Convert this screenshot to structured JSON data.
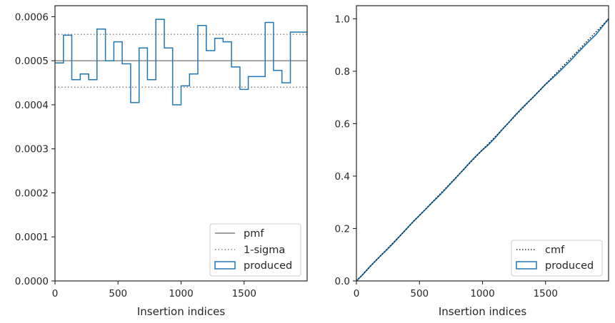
{
  "chart_data": [
    {
      "type": "histogram-step",
      "xlabel": "Insertion indices",
      "ylabel": "",
      "xlim": [
        0,
        2000
      ],
      "ylim": [
        0,
        0.000625
      ],
      "xticks": [
        0,
        500,
        1000,
        1500
      ],
      "xtick_labels": [
        "0",
        "500",
        "1000",
        "1500"
      ],
      "yticks": [
        0,
        0.0001,
        0.0002,
        0.0003,
        0.0004,
        0.0005,
        0.0006
      ],
      "ytick_labels": [
        "0.0000",
        "0.0001",
        "0.0002",
        "0.0003",
        "0.0004",
        "0.0005",
        "0.0006"
      ],
      "bin_edges": [
        0,
        67,
        133,
        200,
        267,
        333,
        400,
        467,
        533,
        600,
        667,
        733,
        800,
        867,
        933,
        1000,
        1067,
        1133,
        1200,
        1267,
        1333,
        1400,
        1467,
        1533,
        1600,
        1667,
        1733,
        1800,
        1867,
        1933,
        2000
      ],
      "series": [
        {
          "name": "produced",
          "kind": "step",
          "color": "#1f77b4",
          "values": [
            0.000495,
            0.000558,
            0.000457,
            0.00047,
            0.000457,
            0.000572,
            0.0005,
            0.000543,
            0.000493,
            0.000405,
            0.000529,
            0.000457,
            0.000594,
            0.000529,
            0.0004,
            0.000443,
            0.00047,
            0.00058,
            0.000523,
            0.000551,
            0.000543,
            0.000486,
            0.000435,
            0.000464,
            0.000464,
            0.000587,
            0.000478,
            0.00045,
            0.000565,
            0.000565
          ]
        },
        {
          "name": "pmf",
          "kind": "hline",
          "y": 0.0005,
          "color": "#808080",
          "style": "solid"
        },
        {
          "name": "1-sigma",
          "kind": "hline-pair",
          "y": [
            0.00044,
            0.00056
          ],
          "color": "#808080",
          "style": "dotted"
        }
      ],
      "legend": {
        "position": "lower-right",
        "entries": [
          {
            "label": "pmf",
            "kind": "line",
            "color": "#808080",
            "style": "solid"
          },
          {
            "label": "1-sigma",
            "kind": "line",
            "color": "#808080",
            "style": "dotted"
          },
          {
            "label": "produced",
            "kind": "patch",
            "color": "#1f77b4"
          }
        ]
      }
    },
    {
      "type": "line",
      "xlabel": "Insertion indices",
      "ylabel": "",
      "xlim": [
        0,
        2000
      ],
      "ylim": [
        0,
        1.05
      ],
      "xticks": [
        0,
        500,
        1000,
        1500
      ],
      "xtick_labels": [
        "0",
        "500",
        "1000",
        "1500"
      ],
      "yticks": [
        0,
        0.2,
        0.4,
        0.6,
        0.8,
        1.0
      ],
      "ytick_labels": [
        "0.0",
        "0.2",
        "0.4",
        "0.6",
        "0.8",
        "1.0"
      ],
      "series": [
        {
          "name": "cmf",
          "color": "#000000",
          "style": "dotted",
          "x": [
            0,
            2000
          ],
          "y": [
            0,
            1.0
          ]
        },
        {
          "name": "produced",
          "color": "#1f77b4",
          "style": "solid",
          "x": [
            0,
            50,
            100,
            150,
            200,
            250,
            300,
            350,
            400,
            450,
            500,
            550,
            600,
            650,
            700,
            750,
            800,
            850,
            900,
            950,
            1000,
            1050,
            1100,
            1150,
            1200,
            1250,
            1300,
            1350,
            1400,
            1450,
            1500,
            1550,
            1600,
            1650,
            1700,
            1750,
            1800,
            1850,
            1900,
            1950,
            2000
          ],
          "y": [
            0,
            0.024,
            0.051,
            0.076,
            0.1,
            0.123,
            0.148,
            0.174,
            0.2,
            0.226,
            0.25,
            0.274,
            0.299,
            0.322,
            0.347,
            0.373,
            0.399,
            0.425,
            0.452,
            0.477,
            0.5,
            0.521,
            0.546,
            0.574,
            0.6,
            0.627,
            0.653,
            0.677,
            0.7,
            0.725,
            0.75,
            0.772,
            0.794,
            0.818,
            0.842,
            0.868,
            0.893,
            0.917,
            0.94,
            0.97,
            1.0
          ]
        }
      ],
      "legend": {
        "position": "lower-right",
        "entries": [
          {
            "label": "cmf",
            "kind": "line",
            "color": "#000000",
            "style": "dotted"
          },
          {
            "label": "produced",
            "kind": "patch",
            "color": "#1f77b4"
          }
        ]
      }
    }
  ]
}
